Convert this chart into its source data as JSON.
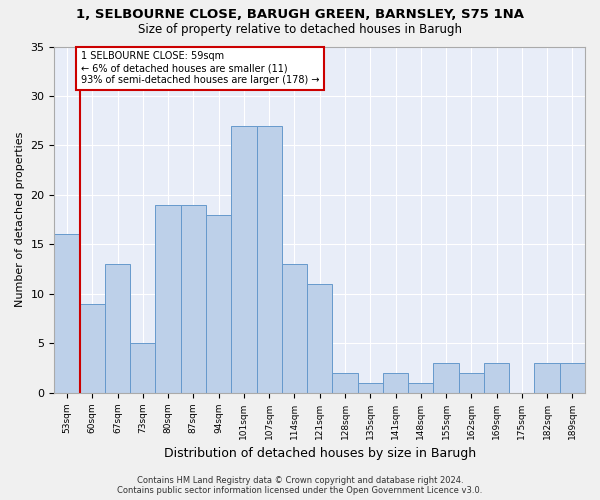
{
  "title1": "1, SELBOURNE CLOSE, BARUGH GREEN, BARNSLEY, S75 1NA",
  "title2": "Size of property relative to detached houses in Barugh",
  "xlabel": "Distribution of detached houses by size in Barugh",
  "ylabel": "Number of detached properties",
  "categories": [
    "53sqm",
    "60sqm",
    "67sqm",
    "73sqm",
    "80sqm",
    "87sqm",
    "94sqm",
    "101sqm",
    "107sqm",
    "114sqm",
    "121sqm",
    "128sqm",
    "135sqm",
    "141sqm",
    "148sqm",
    "155sqm",
    "162sqm",
    "169sqm",
    "175sqm",
    "182sqm",
    "189sqm"
  ],
  "values": [
    16,
    9,
    13,
    5,
    19,
    19,
    18,
    27,
    27,
    13,
    11,
    2,
    1,
    2,
    1,
    3,
    2,
    3,
    0,
    3,
    3
  ],
  "bar_color": "#bdd0e9",
  "bar_edge_color": "#6699cc",
  "property_label": "1 SELBOURNE CLOSE: 59sqm",
  "annotation_line1": "← 6% of detached houses are smaller (11)",
  "annotation_line2": "93% of semi-detached houses are larger (178) →",
  "vline_color": "#cc0000",
  "annotation_box_color": "#ffffff",
  "annotation_box_edge": "#cc0000",
  "ylim": [
    0,
    35
  ],
  "yticks": [
    0,
    5,
    10,
    15,
    20,
    25,
    30,
    35
  ],
  "background_color": "#e8edf8",
  "grid_color": "#ffffff",
  "figure_bg": "#f0f0f0",
  "footer1": "Contains HM Land Registry data © Crown copyright and database right 2024.",
  "footer2": "Contains public sector information licensed under the Open Government Licence v3.0."
}
